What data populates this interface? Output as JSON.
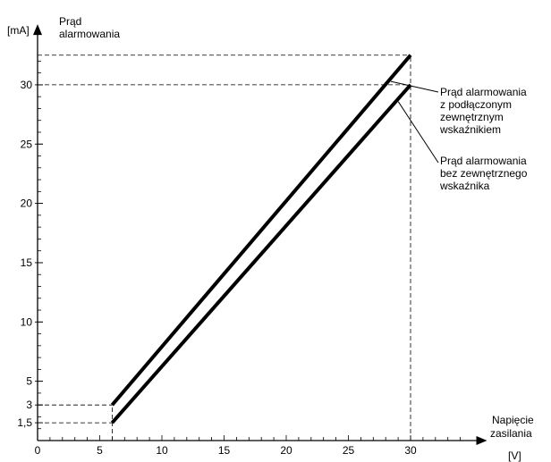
{
  "chart_data": {
    "type": "line",
    "y_unit": "[mA]",
    "ylabel": [
      "Prąd",
      "alarmowania"
    ],
    "xlabel": [
      "Napięcie",
      "zasilania"
    ],
    "x_unit": "[V]",
    "xlim": [
      0,
      35
    ],
    "ylim": [
      0,
      33
    ],
    "x_ticks": [
      0,
      5,
      10,
      15,
      20,
      25,
      30
    ],
    "x_minor_step": 1,
    "y_ticks": [
      {
        "value": 1.5,
        "label": "1,5"
      },
      {
        "value": 3,
        "label": "3"
      },
      {
        "value": 5,
        "label": "5"
      },
      {
        "value": 10,
        "label": "10"
      },
      {
        "value": 15,
        "label": "15"
      },
      {
        "value": 20,
        "label": "20"
      },
      {
        "value": 25,
        "label": "25"
      },
      {
        "value": 30,
        "label": "30"
      }
    ],
    "y_minor_step": 1,
    "series": [
      {
        "name": [
          "Prąd alarmowania",
          "z podłączonym",
          "zewnętrznym",
          "wskaźnikiem"
        ],
        "x": [
          6,
          30
        ],
        "y": [
          3,
          32.5
        ]
      },
      {
        "name": [
          "Prąd alarmowania",
          "bez zewnętrznego",
          "wskaźnika"
        ],
        "x": [
          6,
          30
        ],
        "y": [
          1.5,
          30
        ]
      }
    ],
    "reference_lines": {
      "horizontal": [
        32.5,
        30,
        3,
        1.5
      ],
      "vertical": [
        6,
        30
      ]
    },
    "grid": false,
    "line_color": "#000000"
  }
}
